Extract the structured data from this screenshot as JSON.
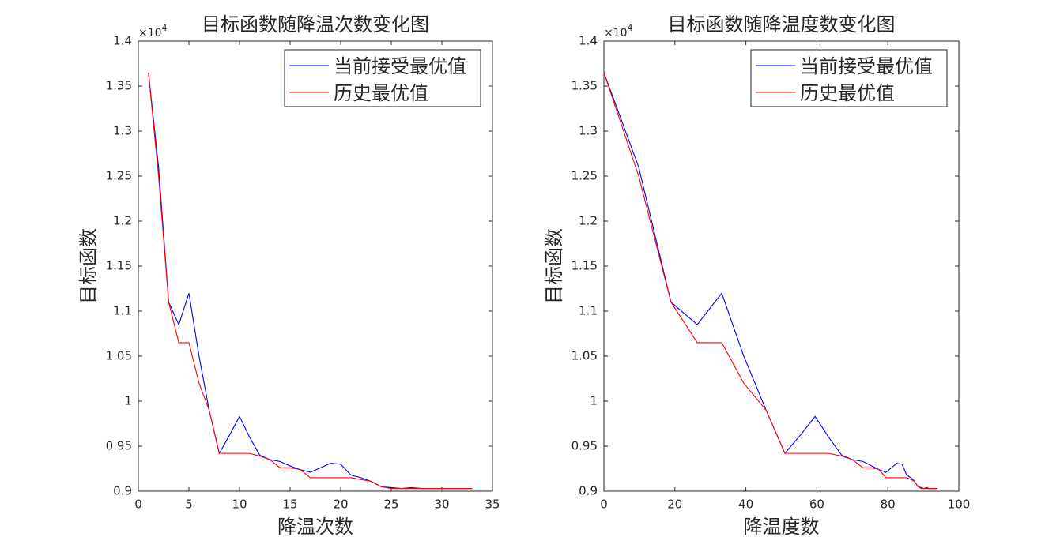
{
  "chart_data": [
    {
      "type": "line",
      "title": "目标函数随降温次数变化图",
      "xlabel": "降温次数",
      "ylabel": "目标函数",
      "y_multiplier": {
        "base": "×10",
        "power": "4"
      },
      "x": [
        1,
        2,
        3,
        4,
        5,
        6,
        7,
        8,
        9,
        10,
        11,
        12,
        13,
        14,
        15,
        16,
        17,
        18,
        19,
        20,
        21,
        22,
        23,
        24,
        25,
        26,
        27,
        28,
        29,
        30,
        31,
        32,
        33
      ],
      "series": [
        {
          "name": "当前接受最优值",
          "color": "#0000ff",
          "values": [
            1.365,
            1.26,
            1.11,
            1.085,
            1.12,
            1.05,
            0.99,
            0.942,
            0.962,
            0.983,
            0.96,
            0.94,
            0.935,
            0.933,
            0.928,
            0.924,
            0.921,
            0.926,
            0.931,
            0.93,
            0.918,
            0.915,
            0.911,
            0.905,
            0.904,
            0.903,
            0.904,
            0.903,
            0.903,
            0.903,
            0.903,
            0.903,
            0.903
          ]
        },
        {
          "name": "历史最优值",
          "color": "#ff0000",
          "values": [
            1.365,
            1.25,
            1.11,
            1.065,
            1.065,
            1.02,
            0.99,
            0.942,
            0.942,
            0.942,
            0.942,
            0.939,
            0.935,
            0.926,
            0.926,
            0.924,
            0.915,
            0.915,
            0.915,
            0.915,
            0.915,
            0.913,
            0.911,
            0.905,
            0.903,
            0.903,
            0.903,
            0.903,
            0.903,
            0.903,
            0.903,
            0.903,
            0.903
          ]
        }
      ],
      "xlim": [
        0,
        35
      ],
      "xticks": [
        0,
        5,
        10,
        15,
        20,
        25,
        30,
        35
      ],
      "ylim": [
        0.9,
        1.4
      ],
      "yticks": [
        0.9,
        0.95,
        1,
        1.05,
        1.1,
        1.15,
        1.2,
        1.25,
        1.3,
        1.35,
        1.4
      ],
      "legend": "upper right",
      "grid": false
    },
    {
      "type": "line",
      "title": "目标函数随降温度数变化图",
      "xlabel": "降温度数",
      "ylabel": "目标函数",
      "y_multiplier": {
        "base": "×10",
        "power": "4"
      },
      "x": [
        0,
        9.8,
        18.9,
        26.3,
        33.2,
        39.4,
        45.7,
        51,
        55.3,
        59.5,
        63.3,
        67,
        70,
        73,
        75.5,
        77.5,
        79.5,
        81,
        82.5,
        84,
        85.3,
        86.5,
        87.5,
        88.5,
        89.4,
        90.2,
        91,
        91.7,
        92.3,
        92.8,
        93.2,
        93.6,
        94
      ],
      "series": [
        {
          "name": "当前接受最优值",
          "color": "#0000ff",
          "values": [
            1.365,
            1.26,
            1.11,
            1.085,
            1.12,
            1.05,
            0.99,
            0.942,
            0.962,
            0.983,
            0.96,
            0.94,
            0.935,
            0.933,
            0.928,
            0.924,
            0.921,
            0.926,
            0.931,
            0.93,
            0.918,
            0.915,
            0.911,
            0.905,
            0.904,
            0.903,
            0.904,
            0.903,
            0.903,
            0.903,
            0.903,
            0.903,
            0.903
          ]
        },
        {
          "name": "历史最优值",
          "color": "#ff0000",
          "values": [
            1.365,
            1.25,
            1.11,
            1.065,
            1.065,
            1.02,
            0.99,
            0.942,
            0.942,
            0.942,
            0.942,
            0.939,
            0.935,
            0.926,
            0.926,
            0.924,
            0.915,
            0.915,
            0.915,
            0.915,
            0.915,
            0.913,
            0.911,
            0.905,
            0.903,
            0.903,
            0.903,
            0.903,
            0.903,
            0.903,
            0.903,
            0.903,
            0.903
          ]
        }
      ],
      "xlim": [
        0,
        100
      ],
      "xticks": [
        0,
        20,
        40,
        60,
        80,
        100
      ],
      "ylim": [
        0.9,
        1.4
      ],
      "yticks": [
        0.9,
        0.95,
        1,
        1.05,
        1.1,
        1.15,
        1.2,
        1.25,
        1.3,
        1.35,
        1.4
      ],
      "legend": "upper right",
      "grid": false
    }
  ]
}
